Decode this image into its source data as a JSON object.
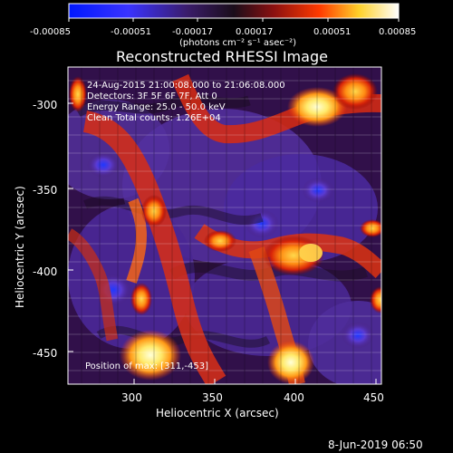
{
  "colorbar": {
    "tick_labels": [
      "-0.00085",
      "-0.00051",
      "-0.00017",
      "0.00017",
      "0.00051",
      "0.00085"
    ],
    "units": "(photons cm⁻² s⁻¹ asec⁻²)"
  },
  "plot": {
    "title": "Reconstructed RHESSI Image",
    "xlabel": "Heliocentric X (arcsec)",
    "ylabel": "Heliocentric Y (arcsec)",
    "x_ticks": [
      "300",
      "350",
      "400",
      "450"
    ],
    "y_ticks": [
      "-300",
      "-350",
      "-400",
      "-450"
    ],
    "x_range": [
      262,
      452
    ],
    "y_range": [
      -277,
      -470
    ],
    "info_lines": [
      "24-Aug-2015 21:00:08.000 to 21:06:08.000",
      "Detectors: 3F 5F 6F 7F, Att 0",
      "Energy Range: 25.0 - 50.0 keV",
      "Clean    Total counts: 1.26E+04"
    ],
    "position_text": "Position of max: [311,-453]"
  },
  "footer": {
    "timestamp": "8-Jun-2019 06:50"
  },
  "colors": {
    "background": "#000000",
    "colorbar_low": "#0000ff",
    "colorbar_mid": "#3b1a7b",
    "colorbar_high": "#ffffff",
    "text": "#ffffff"
  }
}
